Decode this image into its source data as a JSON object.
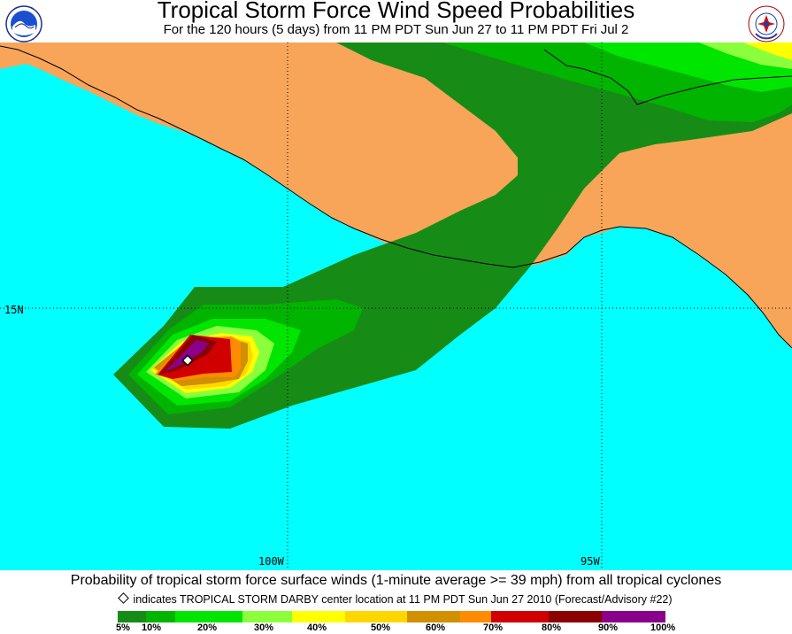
{
  "header": {
    "title": "Tropical Storm Force Wind Speed Probabilities",
    "subtitle": "For the 120 hours (5 days) from 11 PM PDT Sun Jun 27 to 11 PM PDT Fri Jul 2"
  },
  "logos": {
    "left": "NOAA",
    "right": "NATIONAL WEATHER SERVICE"
  },
  "map": {
    "lat_labels": [
      "15N"
    ],
    "lon_labels": [
      "100W",
      "95W"
    ],
    "colors": {
      "ocean": "#00ffff",
      "land": "#f8a55a"
    }
  },
  "footer": {
    "description": "Probability of tropical storm force surface winds (1-minute average >= 39 mph) from all tropical cyclones",
    "legend_note": "indicates TROPICAL STORM DARBY center location at 11 PM PDT Sun Jun 27 2010 (Forecast/Advisory #22)"
  },
  "legend": {
    "bins": [
      {
        "label": "5%",
        "color": "#168c16"
      },
      {
        "label": "10%",
        "color": "#00b400"
      },
      {
        "label": "20%",
        "color": "#00e600"
      },
      {
        "label": "30%",
        "color": "#8cff3c"
      },
      {
        "label": "40%",
        "color": "#ffff00"
      },
      {
        "label": "50%",
        "color": "#ffd700"
      },
      {
        "label": "60%",
        "color": "#d09000"
      },
      {
        "label": "70%",
        "color": "#ff8c00"
      },
      {
        "label": "80%",
        "color": "#d00000"
      },
      {
        "label": "90%",
        "color": "#8b0000"
      },
      {
        "label": "100%",
        "color": "#8b008b"
      }
    ]
  }
}
